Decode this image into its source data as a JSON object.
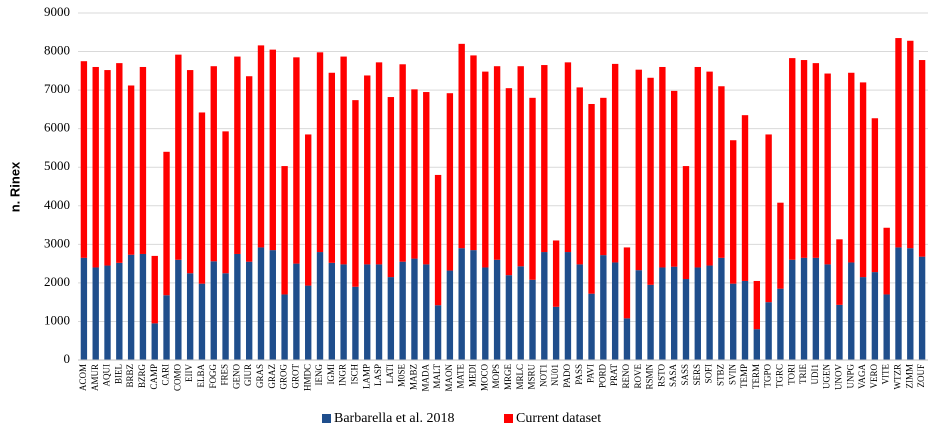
{
  "chart_data": {
    "type": "stacked-bar",
    "y_label": "n. Rinex",
    "categories": [
      "ACOM",
      "AMUR",
      "AQUI",
      "BIEL",
      "BRBZ",
      "BZRG",
      "CAMP",
      "CARI",
      "COMO",
      "EIIV",
      "ELBA",
      "FOGG",
      "FRES",
      "GENO",
      "GIUR",
      "GRAS",
      "GRAZ",
      "GROG",
      "GROT",
      "HMDC",
      "IENG",
      "IGMI",
      "INGR",
      "ISCH",
      "LAMP",
      "LASP",
      "LATI",
      "M0SE",
      "MABZ",
      "MADA",
      "MALT",
      "MAON",
      "MATE",
      "MEDI",
      "MOCO",
      "MOPS",
      "MRGE",
      "MRLC",
      "MSRU",
      "NOT1",
      "NU01",
      "PADO",
      "PASS",
      "PAVI",
      "PORD",
      "PRAT",
      "RENO",
      "ROVE",
      "RSMN",
      "RSTO",
      "SASA",
      "SASS",
      "SERS",
      "SOFI",
      "STBZ",
      "SVIN",
      "TEMP",
      "TERM",
      "TGPO",
      "TGRC",
      "TORI",
      "TRIE",
      "UDI1",
      "UGEN",
      "UNOV",
      "UNPG",
      "VAGA",
      "VERO",
      "VITE",
      "WTZR",
      "ZIMM",
      "ZOUF"
    ],
    "series": [
      {
        "name": "Barbarella et al. 2018",
        "color": "#1f4e8c",
        "values": [
          2650,
          2400,
          2450,
          2520,
          2730,
          2750,
          950,
          1680,
          2600,
          2250,
          1980,
          2560,
          2250,
          2750,
          2550,
          2920,
          2850,
          1700,
          2500,
          1930,
          2800,
          2520,
          2480,
          1900,
          2480,
          2480,
          2150,
          2550,
          2630,
          2480,
          1420,
          2320,
          2900,
          2850,
          2400,
          2600,
          2200,
          2430,
          2080,
          2800,
          1380,
          2800,
          2480,
          1720,
          2720,
          2530,
          1080,
          2330,
          1950,
          2400,
          2420,
          2100,
          2400,
          2450,
          2650,
          1980,
          2050,
          800,
          1500,
          1850,
          2600,
          2650,
          2650,
          2480,
          1430,
          2530,
          2150,
          2280,
          1700,
          2920,
          2900,
          2680
        ]
      },
      {
        "name": "Current dataset",
        "color": "#ff0000",
        "values": [
          5100,
          5200,
          5070,
          5180,
          4390,
          4850,
          1750,
          3720,
          5320,
          5270,
          4440,
          5060,
          3680,
          5120,
          4810,
          5240,
          5200,
          3330,
          5350,
          3920,
          5180,
          4930,
          5390,
          4840,
          4900,
          5240,
          4670,
          5120,
          4390,
          4470,
          3380,
          4600,
          5300,
          5050,
          5080,
          5020,
          4850,
          5190,
          4720,
          4850,
          1720,
          4920,
          4590,
          4920,
          4080,
          5150,
          1840,
          5200,
          5370,
          5200,
          4560,
          2930,
          5200,
          5030,
          4450,
          3720,
          4300,
          1250,
          4350,
          2230,
          5230,
          5130,
          5050,
          4950,
          1700,
          4920,
          5050,
          3990,
          1730,
          5430,
          5380,
          5100
        ]
      }
    ],
    "ylim": [
      0,
      9000
    ],
    "yticks": [
      0,
      1000,
      2000,
      3000,
      4000,
      5000,
      6000,
      7000,
      8000,
      9000
    ],
    "grid": true
  }
}
